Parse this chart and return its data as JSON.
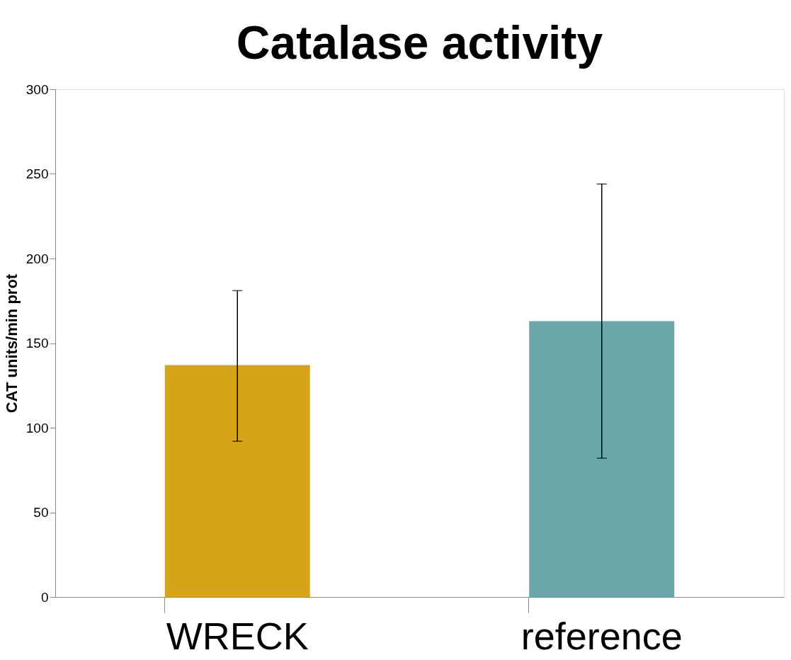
{
  "chart_data": {
    "type": "bar",
    "title": "Catalase activity",
    "ylabel": "CAT units/min prot",
    "categories": [
      "WRECK",
      "reference"
    ],
    "values": [
      137,
      163
    ],
    "colors": [
      "#d5a418",
      "#69a7aa"
    ],
    "errors": [
      [
        92,
        181
      ],
      [
        82,
        244
      ]
    ],
    "ylim": [
      0,
      300
    ],
    "yticks": [
      0,
      50,
      100,
      150,
      200,
      250,
      300
    ],
    "grid": false,
    "legend": false
  }
}
